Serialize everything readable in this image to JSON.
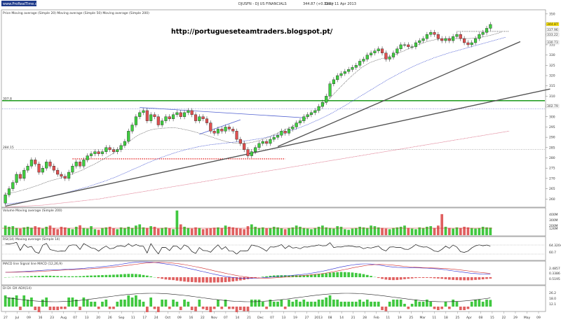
{
  "header": {
    "logo": "www.ProRealTime.com",
    "instrument": "DJUSFN - DJ US FINANCIALS",
    "last": "344.87 (+0.32%)",
    "period": "Daily",
    "date": "11 Apr 2013"
  },
  "colors": {
    "up_candle": "#3fcf3f",
    "down_candle": "#e05050",
    "support_green": "#2aa02a",
    "red_dotted": "#e00000",
    "trendline": "#505050",
    "volume_up": "#40c840",
    "volume_down": "#e06060"
  },
  "chart_data": [
    {
      "type": "candlestick",
      "panel": "price",
      "legend": "Price  Moving average (Simple 20)  Moving average (Simple 50)  Moving average (Simple 200)",
      "annotation": "http://portugueseteamtraders.blogspot.pt/",
      "ylim": [
        256,
        352
      ],
      "y_ticks": [
        260,
        265,
        270,
        275,
        280,
        285,
        290,
        295,
        300,
        305,
        310,
        315,
        320,
        325,
        330,
        335,
        340,
        345,
        350
      ],
      "level_labels": [
        {
          "text": "307.8",
          "value": 307.8
        },
        {
          "text": "284.15",
          "value": 284.15
        }
      ],
      "right_labels": [
        "344.87",
        "337.96",
        "333.22",
        "330.73",
        "302.79"
      ],
      "hlines": [
        {
          "value": 307.8,
          "style": "solid-green"
        },
        {
          "value": 303.8,
          "style": "dotted-blue"
        },
        {
          "value": 284.15,
          "style": "dotted-gray"
        },
        {
          "value": 279.5,
          "style": "dotted-red",
          "from_index": 18,
          "to_index": 75
        },
        {
          "value": 341.5,
          "style": "dotted-black",
          "from_index": 121,
          "to_index": 135
        }
      ],
      "trendlines": [
        {
          "from": [
            0,
            256.5
          ],
          "to": [
            146,
            313.5
          ]
        },
        {
          "from": [
            73,
            285.5
          ],
          "to": [
            138,
            336.5
          ]
        },
        {
          "from": [
            36,
            304.5
          ],
          "to": [
            80,
            299.5
          ]
        },
        {
          "from": [
            52,
            291.5
          ],
          "to": [
            63,
            298.5
          ]
        }
      ],
      "x_labels": [
        "27",
        "Jul",
        "09",
        "16",
        "23",
        "Aug",
        "07",
        "13",
        "20",
        "26",
        "Sep",
        "11",
        "17",
        "24",
        "Oct",
        "09",
        "16",
        "22",
        "Nov",
        "07",
        "14",
        "21",
        "Dec",
        "07",
        "13",
        "19",
        "27",
        "2013",
        "08",
        "14",
        "21",
        "28",
        "Feb",
        "11",
        "19",
        "25",
        "Mar",
        "11",
        "18",
        "25",
        "Apr",
        "08",
        "15",
        "22",
        "29",
        "May",
        "09"
      ],
      "series": [
        {
          "name": "Moving average (Simple 20)",
          "values": [
            262.5,
            262.8,
            263.1,
            263.5,
            264,
            264.5,
            265,
            265.6,
            266.2,
            266.8,
            267.5,
            268.2,
            268.8,
            269.3,
            269.8,
            270.3,
            270.9,
            271.5,
            272.2,
            272.9,
            273.6,
            274.4,
            275.3,
            276.2,
            277.1,
            278.1,
            279.1,
            280.1,
            281.2,
            282.4,
            283.6,
            285,
            286.4,
            287.8,
            289.1,
            290.3,
            291.4,
            292.2,
            293,
            293.6,
            294,
            294.2,
            294.4,
            294.5,
            294.6,
            294.7,
            294.5,
            294.2,
            293.8,
            293.4,
            293,
            292.5,
            292,
            291.5,
            290.9,
            290.3,
            289.7,
            289.1,
            288.5,
            288,
            287.6,
            287.3,
            287.1,
            287,
            287,
            287.2,
            287.5,
            287.9,
            288.4,
            289,
            289.7,
            290.5,
            291.3,
            292.1,
            292.9,
            293.7,
            294.5,
            295.4,
            296.4,
            297.4,
            298.5,
            299.8,
            301.1,
            302.5,
            304,
            305.6,
            307.3,
            309.1,
            311,
            312.9,
            314.8,
            316.6,
            318.4,
            320.1,
            321.7,
            323.2,
            324.5,
            325.6,
            326.5,
            327.2,
            327.8,
            328.3,
            328.8,
            329.3,
            329.9,
            330.6,
            331.4,
            332.2,
            333,
            333.8,
            334.6,
            335.3,
            335.9,
            336.5,
            337,
            337.4,
            337.7,
            337.9,
            338,
            338,
            338,
            338,
            338,
            338,
            338,
            338.1,
            338.3,
            338.5,
            338.8,
            339.2,
            339.6,
            340.1,
            340.6,
            341.2
          ]
        },
        {
          "name": "Moving average (Simple 50)",
          "values": [
            257.5,
            257.7,
            257.9,
            258.1,
            258.4,
            258.7,
            259,
            259.3,
            259.7,
            260.1,
            260.5,
            260.9,
            261.3,
            261.7,
            262.1,
            262.5,
            262.9,
            263.4,
            263.9,
            264.4,
            264.9,
            265.4,
            265.9,
            266.5,
            267.1,
            267.7,
            268.3,
            268.9,
            269.6,
            270.3,
            271,
            271.8,
            272.6,
            273.4,
            274.2,
            275,
            275.8,
            276.6,
            277.4,
            278.2,
            278.9,
            279.6,
            280.3,
            281,
            281.6,
            282.2,
            282.8,
            283.3,
            283.8,
            284.3,
            284.7,
            285.1,
            285.5,
            285.8,
            286.1,
            286.4,
            286.6,
            286.8,
            287,
            287.2,
            287.4,
            287.6,
            287.8,
            288,
            288.2,
            288.4,
            288.7,
            289,
            289.3,
            289.6,
            290,
            290.4,
            290.8,
            291.3,
            291.8,
            292.3,
            292.9,
            293.5,
            294.1,
            294.8,
            295.5,
            296.2,
            297,
            297.8,
            298.6,
            299.5,
            300.4,
            301.3,
            302.3,
            303.3,
            304.3,
            305.4,
            306.5,
            307.6,
            308.7,
            309.8,
            310.9,
            312,
            313.1,
            314.2,
            315.3,
            316.4,
            317.5,
            318.5,
            319.5,
            320.5,
            321.5,
            322.4,
            323.3,
            324.2,
            325,
            325.8,
            326.6,
            327.3,
            328,
            328.7,
            329.3,
            329.9,
            330.5,
            331.1,
            331.6,
            332.1,
            332.6,
            333.1,
            333.6,
            334.1,
            334.6,
            335.1,
            335.6,
            336.1,
            336.6,
            337.1,
            337.6,
            338.1,
            338.6
          ]
        },
        {
          "name": "Moving average (Simple 200)",
          "values": [
            256,
            256.1,
            256.2,
            256.3,
            256.4,
            256.5,
            256.6,
            256.7,
            256.8,
            256.9,
            257,
            257.2,
            257.4,
            257.6,
            257.8,
            258,
            258.2,
            258.4,
            258.6,
            258.8,
            259,
            259.2,
            259.4,
            259.6,
            259.8,
            260,
            260.3,
            260.6,
            260.9,
            261.2,
            261.5,
            261.8,
            262.1,
            262.4,
            262.7,
            263,
            263.3,
            263.6,
            263.9,
            264.2,
            264.5,
            264.8,
            265.1,
            265.4,
            265.7,
            266,
            266.3,
            266.6,
            266.9,
            267.2,
            267.5,
            267.8,
            268.1,
            268.4,
            268.7,
            269,
            269.3,
            269.6,
            269.9,
            270.2,
            270.5,
            270.8,
            271.1,
            271.4,
            271.7,
            272,
            272.3,
            272.6,
            272.9,
            273.2,
            273.5,
            273.8,
            274.1,
            274.4,
            274.7,
            275,
            275.3,
            275.6,
            275.9,
            276.2,
            276.5,
            276.8,
            277.1,
            277.4,
            277.7,
            278,
            278.3,
            278.6,
            278.9,
            279.2,
            279.5,
            279.8,
            280.1,
            280.4,
            280.7,
            281,
            281.3,
            281.6,
            281.9,
            282.2,
            282.5,
            282.8,
            283.1,
            283.4,
            283.7,
            284,
            284.3,
            284.6,
            284.9,
            285.2,
            285.5,
            285.8,
            286.1,
            286.4,
            286.7,
            287,
            287.3,
            287.6,
            287.9,
            288.2,
            288.5,
            288.8,
            289.1,
            289.4,
            289.7,
            290,
            290.3,
            290.6,
            290.9,
            291.2,
            291.5,
            291.8,
            292.1,
            292.4,
            292.7,
            293
          ]
        }
      ],
      "close": [
        262,
        265,
        268,
        272,
        270,
        274,
        276,
        279,
        277,
        273,
        275,
        278,
        276,
        274,
        272,
        271,
        270,
        273,
        276,
        278,
        276,
        279,
        281,
        282,
        283,
        282,
        283,
        285,
        284,
        283,
        284,
        286,
        288,
        293,
        296,
        300,
        302,
        303,
        298,
        301,
        300,
        296,
        298,
        300,
        299,
        301,
        302,
        300,
        302,
        303,
        301,
        298,
        300,
        299,
        297,
        293,
        292,
        294,
        293,
        295,
        294,
        293,
        289,
        287,
        284,
        281,
        283,
        285,
        287,
        288,
        287,
        289,
        290,
        291,
        293,
        292,
        294,
        295,
        297,
        298,
        300,
        301,
        302,
        303,
        305,
        307,
        310,
        316,
        318,
        320,
        321,
        322,
        323,
        324,
        325,
        327,
        328,
        330,
        331,
        332,
        333,
        331,
        328,
        329,
        331,
        333,
        335,
        335,
        334,
        334,
        336,
        337,
        338,
        340,
        341,
        340,
        338,
        337,
        338,
        337,
        339,
        340,
        338,
        336,
        335,
        336,
        338,
        340,
        341,
        343,
        344.87
      ],
      "open": [
        258,
        262,
        265,
        268,
        272,
        270,
        274,
        276,
        279,
        277,
        273,
        275,
        278,
        276,
        274,
        272,
        271,
        270,
        273,
        276,
        278,
        276,
        279,
        281,
        282,
        283,
        282,
        283,
        285,
        284,
        283,
        284,
        286,
        288,
        293,
        296,
        300,
        302,
        303,
        298,
        301,
        300,
        296,
        298,
        300,
        299,
        301,
        302,
        300,
        302,
        303,
        301,
        298,
        300,
        299,
        297,
        293,
        292,
        294,
        293,
        295,
        294,
        293,
        289,
        287,
        284,
        281,
        283,
        285,
        287,
        288,
        287,
        289,
        290,
        291,
        293,
        292,
        294,
        295,
        297,
        298,
        300,
        301,
        302,
        303,
        305,
        307,
        310,
        316,
        318,
        320,
        321,
        322,
        323,
        324,
        325,
        327,
        328,
        330,
        331,
        332,
        333,
        331,
        328,
        329,
        331,
        333,
        335,
        335,
        334,
        334,
        336,
        337,
        338,
        340,
        341,
        340,
        338,
        337,
        338,
        337,
        339,
        340,
        338,
        336,
        335,
        336,
        338,
        340,
        341,
        343
      ]
    },
    {
      "type": "bar",
      "panel": "volume",
      "legend": "Volume  Moving average (Simple 200)",
      "right_labels": [
        "400M",
        "300M",
        "200M",
        "126M"
      ],
      "values": [
        160,
        140,
        150,
        120,
        110,
        130,
        140,
        125,
        150,
        130,
        110,
        140,
        160,
        120,
        100,
        140,
        130,
        115,
        100,
        140,
        165,
        120,
        110,
        150,
        100,
        90,
        120,
        130,
        140,
        115,
        100,
        130,
        120,
        140,
        120,
        160,
        180,
        130,
        120,
        150,
        140,
        110,
        120,
        130,
        115,
        100,
        410,
        180,
        140,
        120,
        110,
        130,
        120,
        100,
        110,
        115,
        125,
        130,
        120,
        160,
        140,
        130,
        120,
        110,
        100,
        150,
        180,
        140,
        120,
        130,
        115,
        120,
        140,
        130,
        115,
        100,
        120,
        130,
        160,
        140,
        120,
        110,
        100,
        120,
        140,
        160,
        130,
        120,
        110,
        150,
        140,
        100,
        90,
        110,
        120,
        140,
        130,
        120,
        160,
        150,
        130,
        120,
        110,
        100,
        120,
        130,
        140,
        160,
        120,
        110,
        100,
        130,
        120,
        140,
        150,
        120,
        160,
        350,
        140,
        120,
        110,
        130,
        120,
        140,
        130,
        120,
        110,
        120,
        140,
        130,
        126
      ]
    },
    {
      "type": "line",
      "panel": "rsi",
      "legend": "RSI(14)  Moving average (Simple 14)",
      "right_labels": [
        "64.3204",
        "60.7"
      ]
    },
    {
      "type": "area",
      "panel": "macd",
      "legend": "MACD line  Signal line  MACD (12,26,9)",
      "right_labels": [
        "2.4857",
        "0.3386",
        "0.5195"
      ]
    },
    {
      "type": "bar",
      "panel": "dmi",
      "legend": "DI  DI-  DX  ADX(14)",
      "right_labels": [
        "26.2",
        "18.0",
        "12.1"
      ]
    }
  ]
}
